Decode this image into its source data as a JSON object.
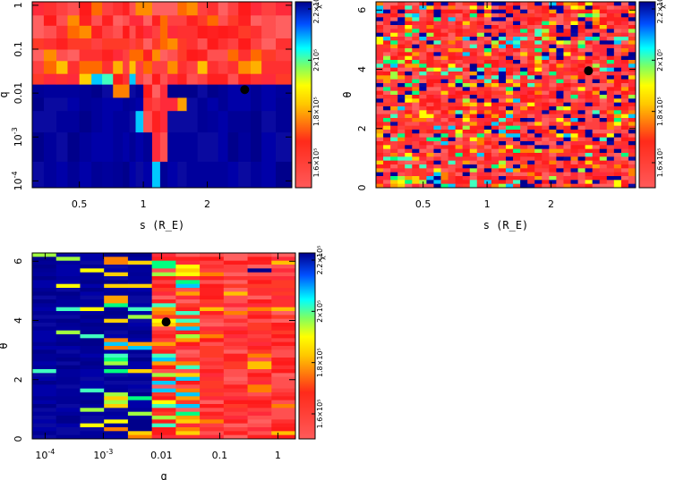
{
  "chart_data": [
    {
      "type": "heatmap",
      "xlabel": "s (R_E)",
      "ylabel": "q",
      "x_scale": "log",
      "y_scale": "log",
      "xlim": [
        0.3,
        5.0
      ],
      "ylim": [
        7e-05,
        1.2
      ],
      "x_ticks": [
        {
          "value": 0.5,
          "label": "0.5"
        },
        {
          "value": 1,
          "label": "1"
        },
        {
          "value": 2,
          "label": "2"
        }
      ],
      "y_ticks": [
        {
          "value": 1,
          "label": "1"
        },
        {
          "value": 0.1,
          "label": "0.1"
        },
        {
          "value": 0.01,
          "label": "0.01"
        },
        {
          "value": 0.001,
          "label": "10^-3"
        },
        {
          "value": 0.0001,
          "label": "10^-4"
        }
      ],
      "colorbar": {
        "label": "χ²",
        "ticks": [
          "1.6×10⁵",
          "1.8×10⁵",
          "2×10⁵",
          "2.2×10⁵"
        ]
      },
      "marker": {
        "x": 3.0,
        "y": 0.012
      },
      "x_edges": [
        0.3,
        0.34,
        0.39,
        0.44,
        0.5,
        0.57,
        0.64,
        0.72,
        0.8,
        0.86,
        0.92,
        1.0,
        1.1,
        1.2,
        1.3,
        1.45,
        1.6,
        1.8,
        2.0,
        2.25,
        2.5,
        2.8,
        3.2,
        3.6,
        4.2,
        5.0
      ],
      "y_edges": [
        7e-05,
        0.00028,
        0.0013,
        0.004,
        0.008,
        0.016,
        0.028,
        0.055,
        0.1,
        0.18,
        0.35,
        0.6,
        1.2
      ],
      "rows": [
        "LLLLLLLLLLLLCLLLLLLLLLLLL",
        "LLLLLLLLLLLLRRLLLLLLLLLLL",
        "LLLLLLLLLLMRRRLLLLLLLLLLL",
        "LLLLLLLLLLLRRRRMLLLLLLLLL",
        "LLLLLLLMMLLRRRLLLLLLLLLLL",
        "LLLLMMMRRMRRRRRRLLLLLLLLL",
        "LLLLLLMMLLLLLLLLLLLLLLLLL",
        "LLLLLLLLLLLLLLLLLLLLLLLLL",
        "LLLLLLLLLLLLLLLLLLLLLLLLL",
        "LLLLLLLLLLLLLLLLLLLLLLLLL",
        "LLLLLLLLLLLLLLLLLLLLLLLLL",
        "LLLLLLLLLLLLLLLLLLLLLLLLL"
      ]
    },
    {
      "type": "heatmap",
      "xlabel": "s (R_E)",
      "ylabel": "θ",
      "x_scale": "log",
      "y_scale": "linear",
      "xlim": [
        0.3,
        5.0
      ],
      "ylim": [
        0,
        6.28
      ],
      "x_ticks": [
        {
          "value": 0.5,
          "label": "0.5"
        },
        {
          "value": 1,
          "label": "1"
        },
        {
          "value": 2,
          "label": "2"
        }
      ],
      "y_ticks": [
        {
          "value": 0,
          "label": "0"
        },
        {
          "value": 2,
          "label": "2"
        },
        {
          "value": 4,
          "label": "4"
        },
        {
          "value": 6,
          "label": "6"
        }
      ],
      "colorbar": {
        "label": "χ²",
        "ticks": [
          "1.6×10⁵",
          "1.8×10⁵",
          "2×10⁵",
          "2.2×10⁵"
        ]
      },
      "marker": {
        "x": 3.0,
        "y": 3.95
      }
    },
    {
      "type": "heatmap",
      "xlabel": "q",
      "ylabel": "θ",
      "x_scale": "log",
      "y_scale": "linear",
      "xlim": [
        6e-05,
        2.0
      ],
      "ylim": [
        0,
        6.28
      ],
      "x_ticks": [
        {
          "value": 0.0001,
          "label": "10^-4"
        },
        {
          "value": 0.001,
          "label": "10^-3"
        },
        {
          "value": 0.01,
          "label": "0.01"
        },
        {
          "value": 0.1,
          "label": "0.1"
        },
        {
          "value": 1,
          "label": "1"
        }
      ],
      "y_ticks": [
        {
          "value": 0,
          "label": "0"
        },
        {
          "value": 2,
          "label": "2"
        },
        {
          "value": 4,
          "label": "4"
        },
        {
          "value": 6,
          "label": "6"
        }
      ],
      "colorbar": {
        "label": "χ²",
        "ticks": [
          "1.6×10⁵",
          "1.8×10⁵",
          "2×10⁵",
          "2.2×10⁵"
        ]
      },
      "marker": {
        "x": 0.012,
        "y": 3.95
      }
    }
  ]
}
